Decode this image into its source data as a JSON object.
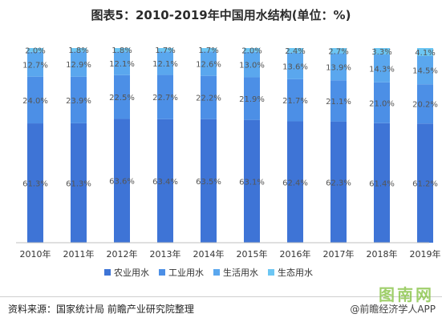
{
  "title": "图表5：2010-2019年中国用水结构(单位：%)",
  "colors": {
    "agriculture": "#3e74d6",
    "industry": "#4c8fe6",
    "domestic": "#5aa7ee",
    "ecology": "#6cc6f3",
    "label_text": "#555555",
    "background": "#ffffff"
  },
  "chart_data": {
    "type": "bar",
    "stacked": true,
    "normalized_percent": true,
    "categories": [
      "2010年",
      "2011年",
      "2012年",
      "2013年",
      "2014年",
      "2015年",
      "2016年",
      "2017年",
      "2018年",
      "2019年"
    ],
    "series": [
      {
        "name": "农业用水",
        "values": [
          61.3,
          61.3,
          63.6,
          63.4,
          63.5,
          63.1,
          62.4,
          62.3,
          61.4,
          61.2
        ],
        "labels": [
          "61.3%",
          "61.3%",
          "63.6%",
          "63.4%",
          "63.5%",
          "63.1%",
          "62.4%",
          "62.3%",
          "61.4%",
          "61.2%"
        ]
      },
      {
        "name": "工业用水",
        "values": [
          24.0,
          23.9,
          22.5,
          22.7,
          22.2,
          21.9,
          21.7,
          21.1,
          21.0,
          20.2
        ],
        "labels": [
          "24.0%",
          "23.9%",
          "22.5%",
          "22.7%",
          "22.2%",
          "21.9%",
          "21.7%",
          "21.1%",
          "21.0%",
          "20.2%"
        ]
      },
      {
        "name": "生活用水",
        "values": [
          12.7,
          12.9,
          12.1,
          12.1,
          12.6,
          13.0,
          13.6,
          13.9,
          14.3,
          14.5
        ],
        "labels": [
          "12.7%",
          "12.9%",
          "12.1%",
          "12.1%",
          "12.6%",
          "13.0%",
          "13.6%",
          "13.9%",
          "14.3%",
          "14.5%"
        ]
      },
      {
        "name": "生态用水",
        "values": [
          2.0,
          1.8,
          1.8,
          1.7,
          1.7,
          2.0,
          2.4,
          2.7,
          3.3,
          4.1
        ],
        "labels": [
          "2.0%",
          "1.8%",
          "1.8%",
          "1.7%",
          "1.7%",
          "2.0%",
          "2.4%",
          "2.7%",
          "3.3%",
          "4.1%"
        ]
      }
    ],
    "legend_position": "bottom",
    "grid": false
  },
  "footer": {
    "source": "资料来源：国家统计局 前瞻产业研究院整理",
    "brand": "@前瞻经济学人APP",
    "logo_text": "图南网"
  }
}
